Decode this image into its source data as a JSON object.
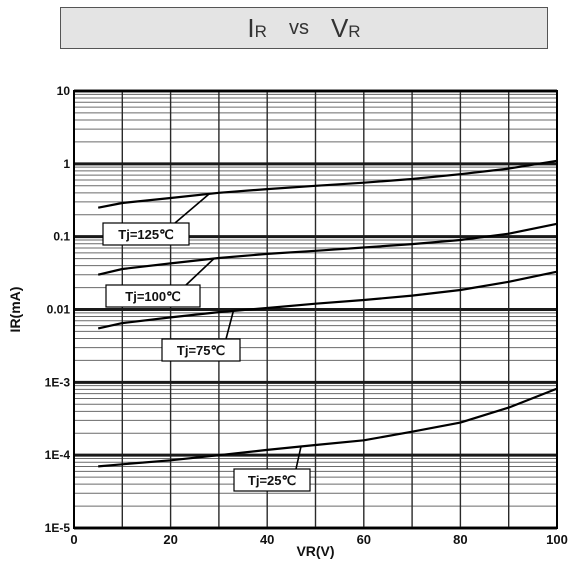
{
  "title": {
    "ir_main": "I",
    "ir_sub": "R",
    "vs": "vs",
    "vr_main": "V",
    "vr_sub": "R"
  },
  "chart_data": {
    "type": "line",
    "xlabel": "VR(V)",
    "ylabel": "IR(mA)",
    "xlim": [
      0,
      100
    ],
    "ylim": [
      1e-05,
      10
    ],
    "yscale": "log",
    "grid": true,
    "x_ticks": [
      0,
      20,
      40,
      60,
      80,
      100
    ],
    "x_tick_labels": [
      "0",
      "20",
      "40",
      "60",
      "80",
      "100"
    ],
    "y_ticks": [
      10,
      1,
      0.1,
      0.01,
      0.001,
      0.0001,
      1e-05
    ],
    "y_tick_labels": [
      "10",
      "1",
      "0.1",
      "0.01",
      "1E-3",
      "1E-4",
      "1E-5"
    ],
    "series": [
      {
        "name": "Tj=125℃",
        "x": [
          5,
          10,
          20,
          30,
          40,
          50,
          60,
          70,
          80,
          90,
          100
        ],
        "y": [
          0.25,
          0.29,
          0.34,
          0.4,
          0.45,
          0.5,
          0.55,
          0.62,
          0.72,
          0.86,
          1.1
        ]
      },
      {
        "name": "Tj=100℃",
        "x": [
          5,
          10,
          20,
          30,
          40,
          50,
          60,
          70,
          80,
          90,
          100
        ],
        "y": [
          0.03,
          0.036,
          0.043,
          0.051,
          0.058,
          0.064,
          0.071,
          0.079,
          0.09,
          0.11,
          0.15
        ]
      },
      {
        "name": "Tj=75℃",
        "x": [
          5,
          10,
          20,
          30,
          40,
          50,
          60,
          70,
          80,
          90,
          100
        ],
        "y": [
          0.0055,
          0.0065,
          0.0078,
          0.0092,
          0.0105,
          0.012,
          0.0135,
          0.0155,
          0.0185,
          0.024,
          0.033
        ]
      },
      {
        "name": "Tj=25℃",
        "x": [
          5,
          10,
          20,
          30,
          40,
          50,
          60,
          70,
          80,
          90,
          100
        ],
        "y": [
          7e-05,
          7.5e-05,
          8.5e-05,
          0.0001,
          0.000118,
          0.000138,
          0.00016,
          0.00021,
          0.00028,
          0.00045,
          0.00082
        ]
      }
    ],
    "annotations": [
      {
        "text": "Tj=125℃",
        "series": 0
      },
      {
        "text": "Tj=100℃",
        "series": 1
      },
      {
        "text": "Tj=75℃",
        "series": 2
      },
      {
        "text": "Tj=25℃",
        "series": 3
      }
    ]
  }
}
